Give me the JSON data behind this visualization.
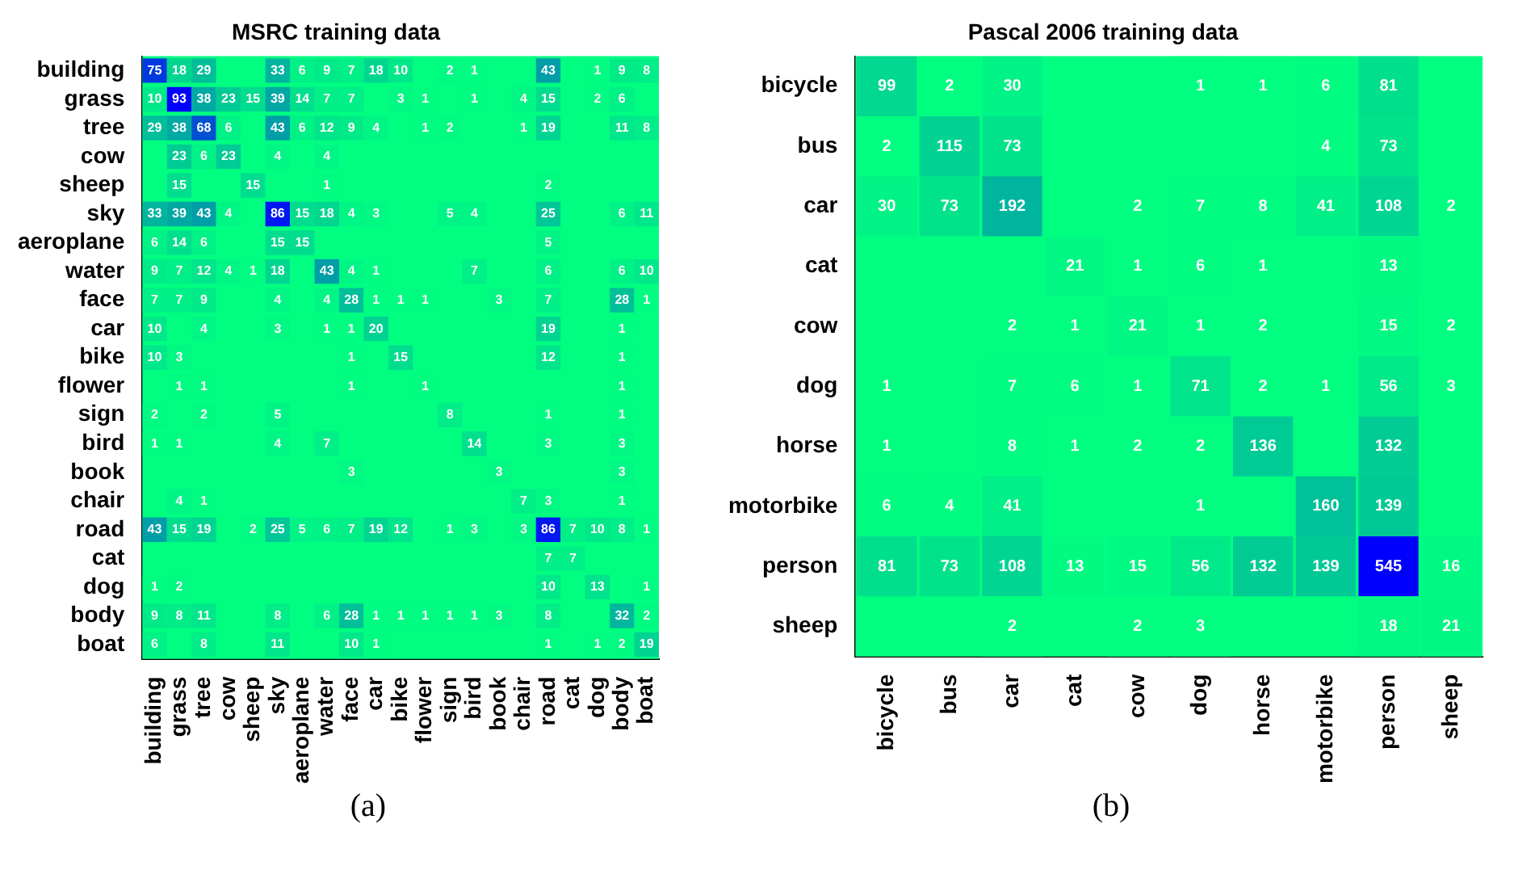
{
  "chart_data": [
    {
      "type": "heatmap",
      "title": "MSRC training data",
      "annotations": [
        "(a)"
      ],
      "data_labels": true,
      "categories": [
        "building",
        "grass",
        "tree",
        "cow",
        "sheep",
        "sky",
        "aeroplane",
        "water",
        "face",
        "car",
        "bike",
        "flower",
        "sign",
        "bird",
        "book",
        "chair",
        "road",
        "cat",
        "dog",
        "body",
        "boat"
      ],
      "y_categories": [
        "building",
        "grass",
        "tree",
        "cow",
        "sheep",
        "sky",
        "aeroplane",
        "water",
        "face",
        "car",
        "bike",
        "flower",
        "sign",
        "bird",
        "book",
        "chair",
        "road",
        "cat",
        "dog",
        "body",
        "boat"
      ],
      "cells": [
        [
          75,
          18,
          29,
          null,
          null,
          33,
          6,
          9,
          7,
          18,
          10,
          null,
          2,
          1,
          null,
          null,
          43,
          null,
          1,
          9,
          8
        ],
        [
          10,
          93,
          38,
          23,
          15,
          39,
          14,
          7,
          7,
          null,
          3,
          1,
          null,
          1,
          null,
          4,
          15,
          null,
          2,
          6,
          null
        ],
        [
          29,
          38,
          68,
          6,
          null,
          43,
          6,
          12,
          9,
          4,
          null,
          1,
          2,
          null,
          null,
          1,
          19,
          null,
          null,
          11,
          8
        ],
        [
          null,
          23,
          6,
          23,
          null,
          4,
          null,
          4,
          null,
          null,
          null,
          null,
          null,
          null,
          null,
          null,
          null,
          null,
          null,
          null,
          null
        ],
        [
          null,
          15,
          null,
          null,
          15,
          null,
          null,
          1,
          null,
          null,
          null,
          null,
          null,
          null,
          null,
          null,
          2,
          null,
          null,
          null,
          null
        ],
        [
          33,
          39,
          43,
          4,
          null,
          86,
          15,
          18,
          4,
          3,
          null,
          null,
          5,
          4,
          null,
          null,
          25,
          null,
          null,
          6,
          11
        ],
        [
          6,
          14,
          6,
          null,
          null,
          15,
          15,
          null,
          null,
          null,
          null,
          null,
          null,
          null,
          null,
          null,
          5,
          null,
          null,
          null,
          null
        ],
        [
          9,
          7,
          12,
          4,
          1,
          18,
          null,
          43,
          4,
          1,
          null,
          null,
          null,
          7,
          null,
          null,
          6,
          null,
          null,
          6,
          10
        ],
        [
          7,
          7,
          9,
          null,
          null,
          4,
          null,
          4,
          28,
          1,
          1,
          1,
          null,
          null,
          3,
          null,
          7,
          null,
          null,
          28,
          1
        ],
        [
          10,
          null,
          4,
          null,
          null,
          3,
          null,
          1,
          1,
          20,
          null,
          null,
          null,
          null,
          null,
          null,
          19,
          null,
          null,
          1,
          null
        ],
        [
          10,
          3,
          null,
          null,
          null,
          null,
          null,
          null,
          1,
          null,
          15,
          null,
          null,
          null,
          null,
          null,
          12,
          null,
          null,
          1,
          null
        ],
        [
          null,
          1,
          1,
          null,
          null,
          null,
          null,
          null,
          1,
          null,
          null,
          1,
          null,
          null,
          null,
          null,
          null,
          null,
          null,
          1,
          null
        ],
        [
          2,
          null,
          2,
          null,
          null,
          5,
          null,
          null,
          null,
          null,
          null,
          null,
          8,
          null,
          null,
          null,
          1,
          null,
          null,
          1,
          null
        ],
        [
          1,
          1,
          null,
          null,
          null,
          4,
          null,
          7,
          null,
          null,
          null,
          null,
          null,
          14,
          null,
          null,
          3,
          null,
          null,
          3,
          null
        ],
        [
          null,
          null,
          null,
          null,
          null,
          null,
          null,
          null,
          3,
          null,
          null,
          null,
          null,
          null,
          3,
          null,
          null,
          null,
          null,
          3,
          null
        ],
        [
          null,
          4,
          1,
          null,
          null,
          null,
          null,
          null,
          null,
          null,
          null,
          null,
          null,
          null,
          null,
          7,
          3,
          null,
          null,
          1,
          null
        ],
        [
          43,
          15,
          19,
          null,
          2,
          25,
          5,
          6,
          7,
          19,
          12,
          null,
          1,
          3,
          null,
          3,
          86,
          7,
          10,
          8,
          1
        ],
        [
          null,
          null,
          null,
          null,
          null,
          null,
          null,
          null,
          null,
          null,
          null,
          null,
          null,
          null,
          null,
          null,
          7,
          7,
          null,
          null,
          null
        ],
        [
          1,
          2,
          null,
          null,
          null,
          null,
          null,
          null,
          null,
          null,
          null,
          null,
          null,
          null,
          null,
          null,
          10,
          null,
          13,
          null,
          1
        ],
        [
          9,
          8,
          11,
          null,
          null,
          8,
          null,
          6,
          28,
          1,
          1,
          1,
          1,
          1,
          3,
          null,
          8,
          null,
          null,
          32,
          2
        ],
        [
          6,
          null,
          8,
          null,
          null,
          11,
          null,
          null,
          10,
          1,
          null,
          null,
          null,
          null,
          null,
          null,
          1,
          null,
          1,
          2,
          19
        ]
      ]
    },
    {
      "type": "heatmap",
      "title": "Pascal 2006 training data",
      "annotations": [
        "(b)"
      ],
      "data_labels": true,
      "categories": [
        "bicycle",
        "bus",
        "car",
        "cat",
        "cow",
        "dog",
        "horse",
        "motorbike",
        "person",
        "sheep"
      ],
      "y_categories": [
        "bicycle",
        "bus",
        "car",
        "cat",
        "cow",
        "dog",
        "horse",
        "motorbike",
        "person",
        "sheep"
      ],
      "cells": [
        [
          99,
          2,
          30,
          null,
          null,
          1,
          1,
          6,
          81,
          null
        ],
        [
          2,
          115,
          73,
          null,
          null,
          null,
          null,
          4,
          73,
          null
        ],
        [
          30,
          73,
          192,
          null,
          2,
          7,
          8,
          41,
          108,
          2
        ],
        [
          null,
          null,
          null,
          21,
          1,
          6,
          1,
          null,
          13,
          null
        ],
        [
          null,
          null,
          2,
          1,
          21,
          1,
          2,
          null,
          15,
          2
        ],
        [
          1,
          null,
          7,
          6,
          1,
          71,
          2,
          1,
          56,
          3
        ],
        [
          1,
          null,
          8,
          1,
          2,
          2,
          136,
          null,
          132,
          null
        ],
        [
          6,
          4,
          41,
          null,
          null,
          1,
          null,
          160,
          139,
          null
        ],
        [
          81,
          73,
          108,
          13,
          15,
          56,
          132,
          139,
          545,
          16
        ],
        [
          null,
          null,
          2,
          null,
          2,
          3,
          null,
          null,
          18,
          21
        ]
      ]
    }
  ]
}
